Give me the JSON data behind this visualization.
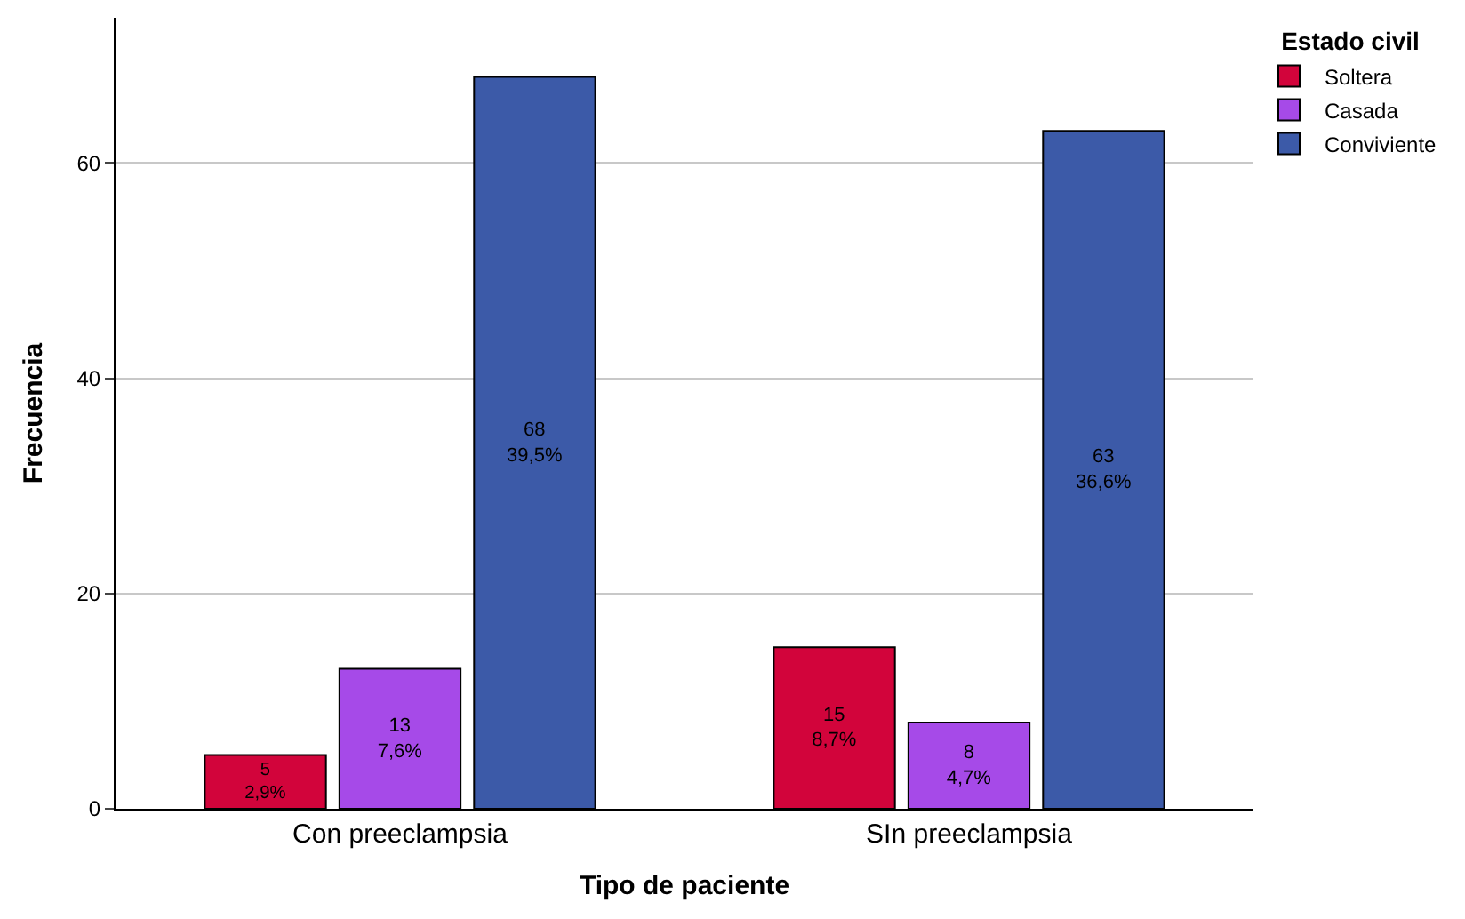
{
  "chart_data": {
    "type": "bar",
    "xlabel": "Tipo de paciente",
    "ylabel": "Frecuencia",
    "legend_title": "Estado civil",
    "categories": [
      "Con preeclampsia",
      "SIn preeclampsia"
    ],
    "series": [
      {
        "name": "Soltera",
        "color": "#d2043b",
        "values": [
          5,
          15
        ],
        "value_labels": [
          "5\n2,9%",
          "15\n8,7%"
        ]
      },
      {
        "name": "Casada",
        "color": "#a64ae8",
        "values": [
          13,
          8
        ],
        "value_labels": [
          "13\n7,6%",
          "8\n4,7%"
        ]
      },
      {
        "name": "Conviviente",
        "color": "#3c5aa8",
        "values": [
          68,
          63
        ],
        "value_labels": [
          "68\n39,5%",
          "63\n36,6%"
        ]
      }
    ],
    "ylim": [
      0,
      73.5
    ],
    "yticks": [
      0,
      20,
      40,
      60
    ],
    "grid": "y",
    "legend": "top right"
  }
}
